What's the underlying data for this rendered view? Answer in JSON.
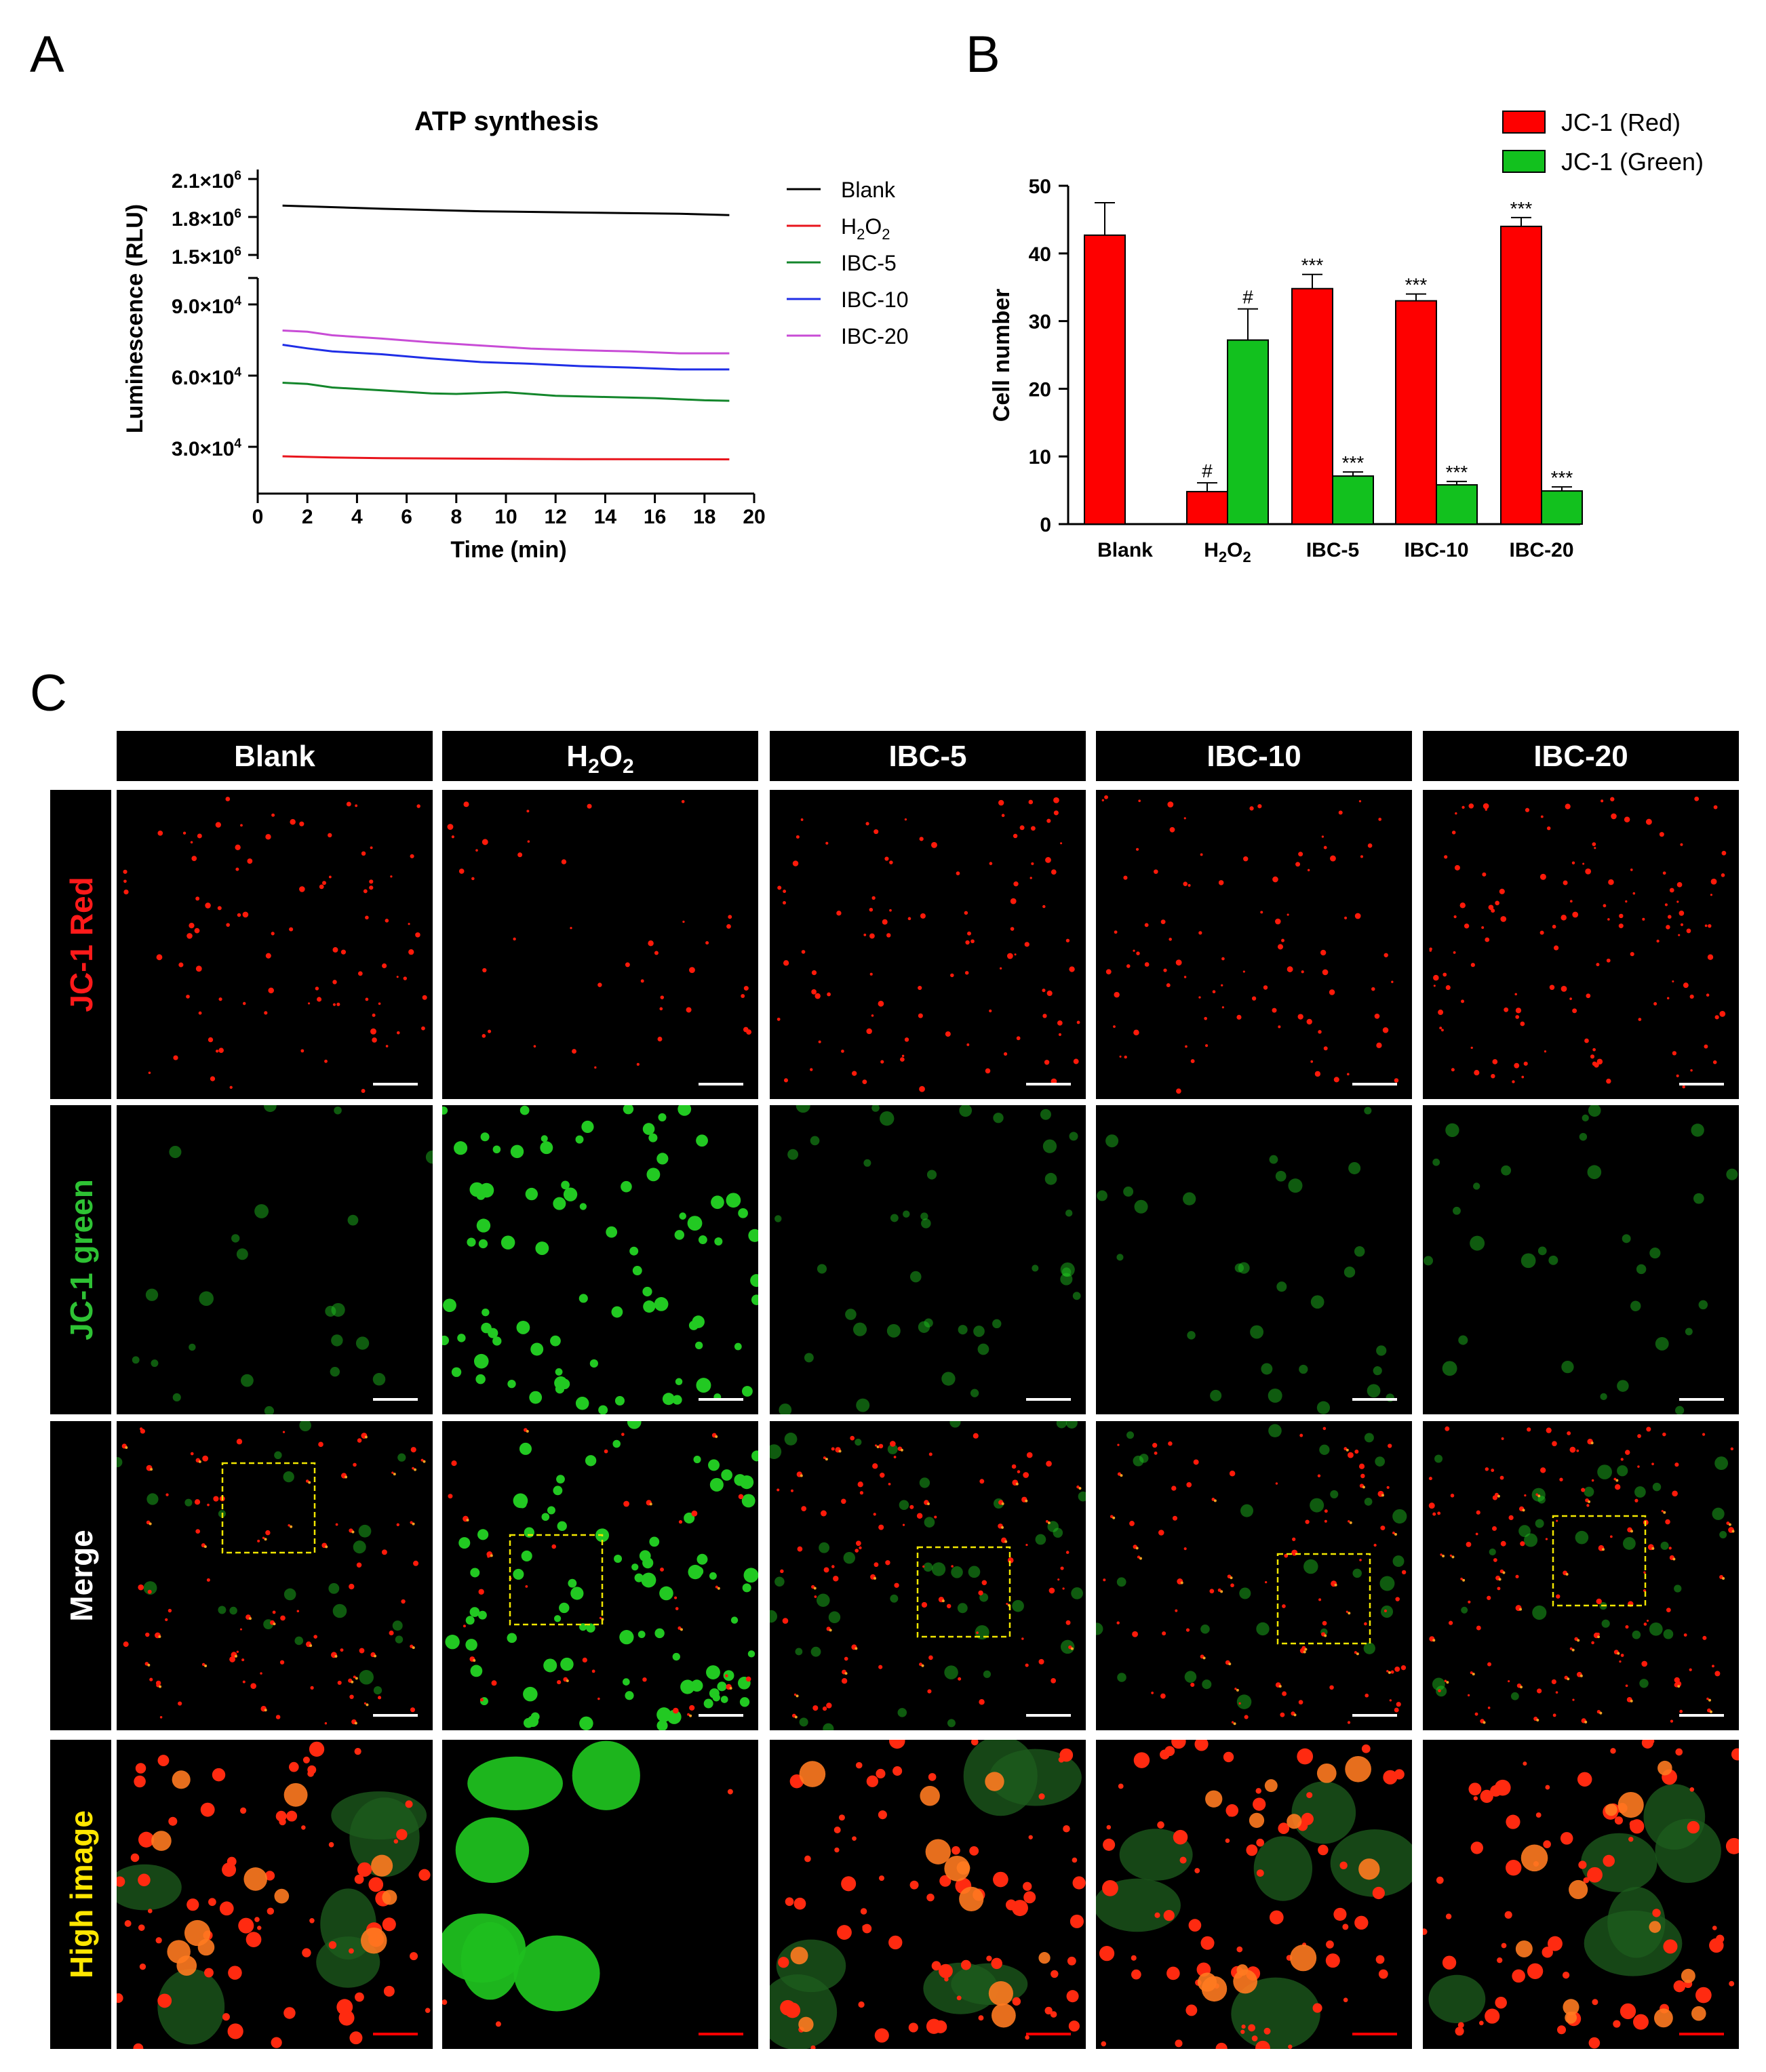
{
  "panel_letters": [
    "A",
    "B",
    "C"
  ],
  "colors": {
    "Blank": "#000000",
    "H2O2": "#e8141c",
    "IBC-5": "#13862b",
    "IBC-10": "#1f2ee6",
    "IBC-20": "#c84cd6",
    "bar_red": "#fe0000",
    "bar_green": "#12c11e"
  },
  "chart_data": [
    {
      "type": "line",
      "panel": "A",
      "title": "ATP synthesis",
      "xlabel": "Time (min)",
      "ylabel": "Luminescence (RLU)",
      "xlim": [
        0,
        20
      ],
      "xticks": [
        "0",
        "2",
        "4",
        "6",
        "8",
        "10",
        "12",
        "14",
        "16",
        "18",
        "20"
      ],
      "ylim_upper": [
        1500000,
        2100000
      ],
      "ylim_lower": [
        0,
        105000
      ],
      "y_broken_axis": true,
      "yticks_upper": [
        {
          "value": 2100000,
          "mant": "2.1×10",
          "exp": "6"
        },
        {
          "value": 1800000,
          "mant": "1.8×10",
          "exp": "6"
        },
        {
          "value": 1500000,
          "mant": "1.5×10",
          "exp": "6"
        }
      ],
      "yticks_lower": [
        {
          "value": 90000,
          "mant": "9.0×10",
          "exp": "4"
        },
        {
          "value": 60000,
          "mant": "6.0×10",
          "exp": "4"
        },
        {
          "value": 30000,
          "mant": "3.0×10",
          "exp": "4"
        }
      ],
      "legend_position": "right",
      "series": [
        {
          "name": "Blank",
          "segment": "upper",
          "x": [
            1,
            5,
            9,
            13,
            17,
            19
          ],
          "y": [
            1890000,
            1865000,
            1845000,
            1835000,
            1825000,
            1815000
          ]
        },
        {
          "name": "H2O2",
          "segment": "lower",
          "x": [
            1,
            3,
            5,
            9,
            13,
            19
          ],
          "y": [
            26000,
            25500,
            25200,
            25000,
            24800,
            24700
          ]
        },
        {
          "name": "IBC-5",
          "segment": "lower",
          "x": [
            1,
            2,
            3,
            5,
            7,
            8,
            10,
            12,
            14,
            16,
            18,
            19
          ],
          "y": [
            57000,
            56500,
            55000,
            53800,
            52500,
            52300,
            53000,
            51500,
            51000,
            50500,
            49600,
            49400
          ]
        },
        {
          "name": "IBC-10",
          "segment": "lower",
          "x": [
            1,
            2,
            3,
            5,
            7,
            9,
            11,
            13,
            15,
            17,
            19
          ],
          "y": [
            73000,
            71500,
            70200,
            69000,
            67200,
            65700,
            65000,
            64000,
            63400,
            62600,
            62600
          ]
        },
        {
          "name": "IBC-20",
          "segment": "lower",
          "x": [
            1,
            2,
            3,
            5,
            7,
            9,
            11,
            13,
            15,
            17,
            19
          ],
          "y": [
            79000,
            78500,
            77000,
            75600,
            74000,
            72700,
            71400,
            70700,
            70200,
            69400,
            69400
          ]
        }
      ]
    },
    {
      "type": "bar",
      "panel": "B",
      "xlabel": "",
      "ylabel": "Cell number",
      "ylim": [
        0,
        50
      ],
      "yticks": [
        "0",
        "10",
        "20",
        "30",
        "40",
        "50"
      ],
      "categories": [
        "Blank",
        "H2O2",
        "IBC-5",
        "IBC-10",
        "IBC-20"
      ],
      "legend_position": "top-right",
      "series": [
        {
          "name": "JC-1 (Red)",
          "values": [
            42.7,
            4.8,
            34.8,
            33.0,
            44.0
          ],
          "errors": [
            4.8,
            1.3,
            2.1,
            1.0,
            1.3
          ],
          "annotations": [
            "",
            "#",
            "***",
            "***",
            "***"
          ]
        },
        {
          "name": "JC-1 (Green)",
          "values": [
            0,
            27.2,
            7.1,
            5.8,
            4.9
          ],
          "errors": [
            0,
            4.6,
            0.6,
            0.5,
            0.6
          ],
          "annotations": [
            "",
            "#",
            "***",
            "***",
            "***"
          ]
        }
      ]
    }
  ],
  "panel_C": {
    "columns": [
      {
        "label": "Blank",
        "sub": "",
        "rest": ""
      },
      {
        "label": "H",
        "sub": "2",
        "rest": "O",
        "sub2": "2"
      },
      {
        "label": "IBC-5",
        "sub": "",
        "rest": ""
      },
      {
        "label": "IBC-10",
        "sub": "",
        "rest": ""
      },
      {
        "label": "IBC-20",
        "sub": "",
        "rest": ""
      }
    ],
    "rows": [
      {
        "parts": [
          {
            "text": "JC-1 Red",
            "color": "#ff1a1a"
          }
        ]
      },
      {
        "parts": [
          {
            "text": "JC-1 green",
            "color": "#2ec234"
          }
        ]
      },
      {
        "parts": [
          {
            "text": "Merge",
            "color": "#ffffff"
          }
        ]
      },
      {
        "parts": [
          {
            "text": "High image",
            "color": "#ffe600"
          }
        ]
      }
    ],
    "scale_bar_colors": [
      "#ffffff",
      "#ffffff",
      "#ffffff",
      "#ff0000"
    ]
  }
}
